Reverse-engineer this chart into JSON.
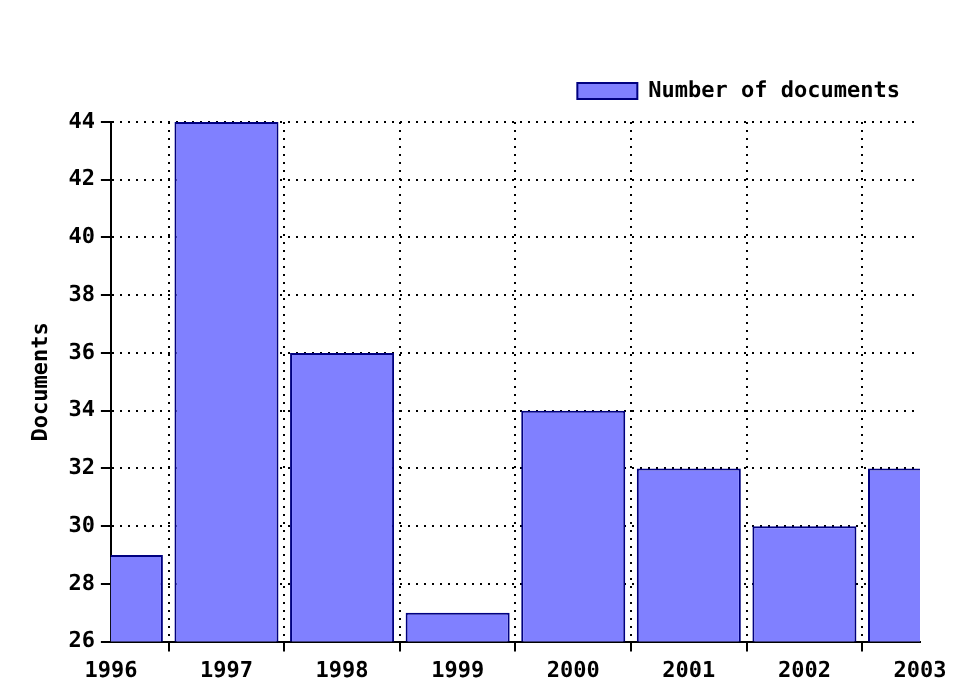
{
  "chart_data": {
    "type": "bar",
    "ylabel": "Documents",
    "x": [
      1996,
      1997,
      1998,
      1999,
      2000,
      2001,
      2002,
      2003
    ],
    "series": [
      {
        "name": "Number of documents",
        "color": "#8080ff",
        "values": [
          29,
          44,
          36,
          27,
          34,
          32,
          30,
          32
        ]
      }
    ],
    "xlim": [
      1996,
      2003
    ],
    "xticks": [
      1996,
      1997,
      1998,
      1999,
      2000,
      2001,
      2002,
      2003
    ],
    "ylim": [
      26,
      44
    ],
    "yticks": [
      26,
      28,
      30,
      32,
      34,
      36,
      38,
      40,
      42,
      44
    ],
    "grid": true,
    "legend": "top right"
  }
}
